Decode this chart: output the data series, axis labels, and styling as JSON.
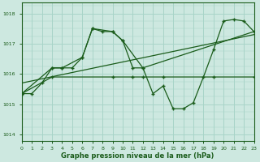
{
  "background_color": "#cde8e0",
  "grid_color": "#a8d4c8",
  "line_color": "#1a5c1a",
  "text_color": "#1a5c1a",
  "xlabel": "Graphe pression niveau de la mer (hPa)",
  "xlim": [
    0,
    23
  ],
  "ylim": [
    1013.8,
    1018.35
  ],
  "yticks": [
    1014,
    1015,
    1016,
    1017,
    1018
  ],
  "xticks": [
    0,
    1,
    2,
    3,
    4,
    5,
    6,
    7,
    8,
    9,
    10,
    11,
    12,
    13,
    14,
    15,
    16,
    17,
    18,
    19,
    20,
    21,
    22,
    23
  ],
  "series_zigzag_x": [
    0,
    1,
    2,
    3,
    4,
    5,
    6,
    7,
    8,
    9,
    10,
    11,
    12,
    13,
    14,
    15,
    16,
    17,
    18,
    19,
    20,
    21,
    22,
    23
  ],
  "series_zigzag_y": [
    1015.35,
    1015.35,
    1015.7,
    1016.2,
    1016.2,
    1016.2,
    1016.55,
    1017.5,
    1017.4,
    1017.4,
    1017.1,
    1016.2,
    1016.2,
    1015.35,
    1015.6,
    1014.85,
    1014.85,
    1015.05,
    1015.9,
    1016.8,
    1017.75,
    1017.8,
    1017.75,
    1017.4
  ],
  "series_flat_x": [
    0,
    3,
    9,
    11,
    12,
    14,
    19,
    23
  ],
  "series_flat_y": [
    1015.35,
    1015.9,
    1015.9,
    1015.9,
    1015.9,
    1015.9,
    1015.9,
    1015.9
  ],
  "series_upper_x": [
    0,
    3,
    4,
    6,
    7,
    9,
    10,
    12,
    23
  ],
  "series_upper_y": [
    1015.35,
    1016.2,
    1016.2,
    1016.55,
    1017.5,
    1017.4,
    1017.1,
    1016.2,
    1017.4
  ],
  "trend_x": [
    0,
    23
  ],
  "trend_y": [
    1015.7,
    1017.3
  ]
}
